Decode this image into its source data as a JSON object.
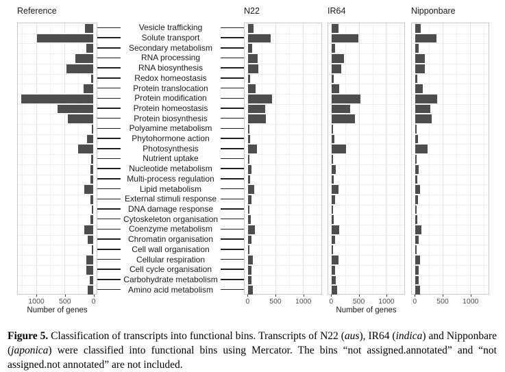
{
  "figure": {
    "x_axis_title": "Number of genes",
    "x_tick_labels_reference": [
      "1000",
      "500",
      "0"
    ],
    "x_tick_labels_right_panels": [
      "0",
      "500",
      "1000"
    ]
  },
  "chart_data": {
    "type": "bar",
    "orientation": "horizontal",
    "title": "",
    "xlabel": "Number of genes",
    "ylabel": "",
    "x_ticks": [
      0,
      500,
      1000
    ],
    "gridlines": [
      0,
      250,
      500,
      750,
      1000,
      1250
    ],
    "x_range": [
      -65,
      1335
    ],
    "grid": true,
    "bar_color": "#4d4d4d",
    "categories": [
      "Vesicle trafficking",
      "Solute transport",
      "Secondary metabolism",
      "RNA processing",
      "RNA biosynthesis",
      "Redox homeostasis",
      "Protein translocation",
      "Protein modification",
      "Protein homeostasis",
      "Protein biosynthesis",
      "Polyamine metabolism",
      "Phytohormone action",
      "Photosynthesis",
      "Nutrient uptake",
      "Nucleotide metabolism",
      "Multi-process regulation",
      "Lipid metabolism",
      "External stimuli response",
      "DNA damage response",
      "Cytoskeleton organisation",
      "Coenzyme metabolism",
      "Chromatin organisation",
      "Cell wall organisation",
      "Cellular respiration",
      "Cell cycle organisation",
      "Carbohydrate metabolism",
      "Amino acid metabolism"
    ],
    "series": [
      {
        "name": "Reference",
        "mirrored": true,
        "values": [
          145,
          1000,
          115,
          310,
          465,
          35,
          170,
          1270,
          630,
          445,
          12,
          100,
          260,
          30,
          45,
          50,
          160,
          50,
          10,
          45,
          155,
          95,
          12,
          115,
          120,
          60,
          90
        ]
      },
      {
        "name": "N22",
        "mirrored": false,
        "values": [
          95,
          410,
          70,
          175,
          190,
          35,
          135,
          430,
          310,
          320,
          8,
          40,
          160,
          10,
          55,
          30,
          110,
          60,
          8,
          45,
          120,
          60,
          15,
          80,
          55,
          60,
          80
        ]
      },
      {
        "name": "IR64",
        "mirrored": false,
        "values": [
          120,
          490,
          65,
          225,
          180,
          40,
          140,
          525,
          345,
          430,
          8,
          50,
          265,
          12,
          70,
          35,
          125,
          65,
          10,
          40,
          140,
          65,
          15,
          120,
          65,
          70,
          95
        ]
      },
      {
        "name": "Nipponbare",
        "mirrored": false,
        "values": [
          95,
          385,
          65,
          170,
          175,
          40,
          130,
          395,
          275,
          300,
          8,
          45,
          220,
          10,
          60,
          35,
          90,
          45,
          10,
          40,
          115,
          60,
          12,
          80,
          60,
          60,
          80
        ]
      }
    ]
  },
  "caption": {
    "segments": [
      {
        "style": "bold",
        "text": "Figure 5."
      },
      {
        "style": "normal",
        "text": "  Classification of transcripts into functional bins.  Transcripts of N22 ("
      },
      {
        "style": "italic",
        "text": "aus"
      },
      {
        "style": "normal",
        "text": "), IR64 ("
      },
      {
        "style": "italic",
        "text": "indica"
      },
      {
        "style": "normal",
        "text": ") and Nipponbare ("
      },
      {
        "style": "italic",
        "text": "japonica"
      },
      {
        "style": "normal",
        "text": ") were classified into functional bins using Mercator.  The bins “not assigned.annotated” and “not assigned.not annotated” are not included."
      }
    ]
  }
}
